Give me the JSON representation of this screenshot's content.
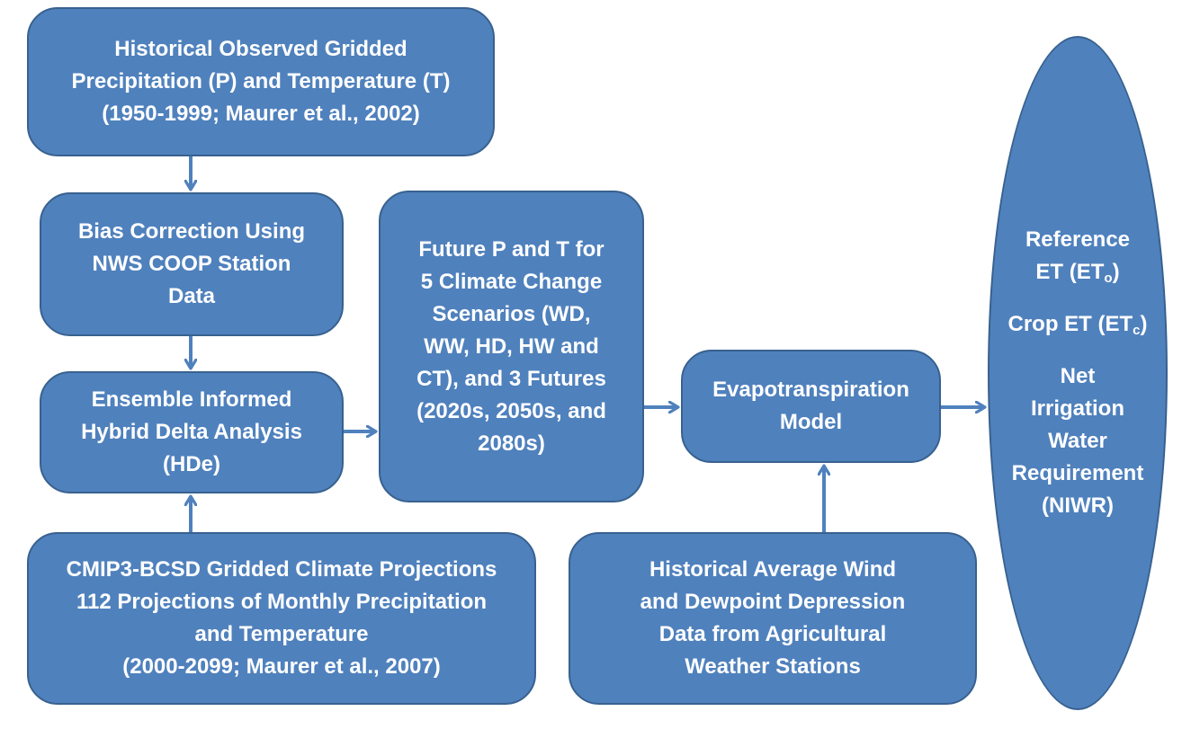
{
  "boxes": {
    "historical_observed": {
      "lines": [
        "Historical Observed Gridded",
        "Precipitation (P) and Temperature (T)",
        "(1950-1999; Maurer et al., 2002)"
      ]
    },
    "bias_correction": {
      "lines": [
        "Bias Correction  Using",
        "NWS COOP Station",
        "Data"
      ]
    },
    "ensemble_hybrid_delta": {
      "lines": [
        "Ensemble Informed",
        "Hybrid Delta Analysis",
        "(HDe)"
      ]
    },
    "cmip3_projections": {
      "lines": [
        "CMIP3-BCSD Gridded Climate Projections",
        "112 Projections of Monthly Precipitation",
        "and Temperature",
        "(2000-2099; Maurer et al., 2007)"
      ]
    },
    "future_p_t": {
      "lines": [
        "Future P and T for",
        "5 Climate Change",
        "Scenarios (WD,",
        "WW, HD, HW and",
        "CT), and 3 Futures",
        "(2020s, 2050s, and",
        "2080s)"
      ]
    },
    "et_model": {
      "lines": [
        "Evapotranspiration",
        "Model"
      ]
    },
    "wind_dewpoint": {
      "lines": [
        "Historical Average Wind",
        "and Dewpoint Depression",
        "Data from Agricultural",
        "Weather Stations"
      ]
    },
    "outputs": {
      "reference_et": {
        "line1": "Reference",
        "line2": "ET (ET",
        "sub": "o",
        "close": ")"
      },
      "crop_et": {
        "text": "Crop ET (ET",
        "sub": "c",
        "close": ")"
      },
      "niwr": {
        "lines": [
          "Net",
          "Irrigation",
          "Water",
          "Requirement",
          "(NIWR)"
        ]
      }
    }
  }
}
